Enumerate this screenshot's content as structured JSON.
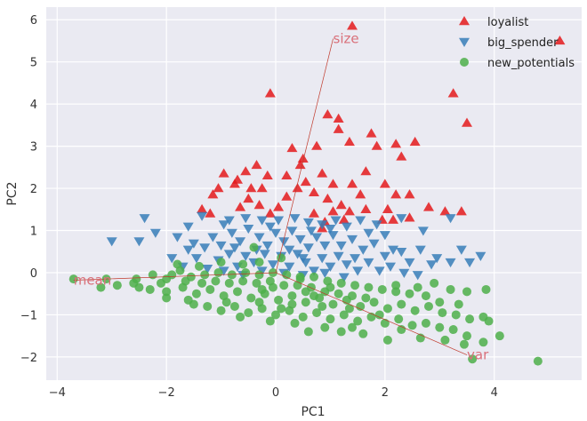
{
  "chart_data": {
    "type": "scatter",
    "title": "",
    "xlabel": "PC1",
    "ylabel": "PC2",
    "xlim": [
      -4.2,
      5.6
    ],
    "ylim": [
      -2.55,
      6.3
    ],
    "xticks": [
      -4,
      -2,
      0,
      2,
      4
    ],
    "yticks": [
      -2,
      -1,
      0,
      1,
      2,
      3,
      4,
      5,
      6
    ],
    "grid": true,
    "legend_position": "top-right",
    "series": [
      {
        "name": "loyalist",
        "marker": "triangle-up",
        "color": "#e41a1c",
        "points": [
          [
            1.4,
            5.85
          ],
          [
            5.2,
            5.5
          ],
          [
            -0.1,
            4.25
          ],
          [
            3.25,
            4.25
          ],
          [
            3.5,
            3.55
          ],
          [
            0.95,
            3.75
          ],
          [
            1.15,
            3.65
          ],
          [
            1.15,
            3.4
          ],
          [
            1.75,
            3.3
          ],
          [
            1.85,
            3.0
          ],
          [
            0.3,
            2.95
          ],
          [
            0.75,
            3.0
          ],
          [
            1.35,
            3.1
          ],
          [
            0.5,
            2.7
          ],
          [
            0.2,
            2.3
          ],
          [
            0.45,
            2.55
          ],
          [
            0.85,
            2.35
          ],
          [
            1.05,
            2.1
          ],
          [
            1.4,
            2.1
          ],
          [
            1.65,
            2.4
          ],
          [
            2.2,
            3.05
          ],
          [
            2.3,
            2.75
          ],
          [
            2.0,
            2.1
          ],
          [
            1.55,
            1.85
          ],
          [
            0.2,
            1.8
          ],
          [
            -0.35,
            2.55
          ],
          [
            -0.15,
            2.3
          ],
          [
            -0.55,
            2.4
          ],
          [
            -0.7,
            2.2
          ],
          [
            -0.75,
            2.1
          ],
          [
            -0.95,
            2.35
          ],
          [
            -0.45,
            2.0
          ],
          [
            -0.25,
            2.0
          ],
          [
            -1.05,
            2.0
          ],
          [
            -0.5,
            1.75
          ],
          [
            -1.15,
            1.85
          ],
          [
            -1.35,
            1.5
          ],
          [
            -1.2,
            1.4
          ],
          [
            -0.65,
            1.55
          ],
          [
            -0.3,
            1.6
          ],
          [
            0.4,
            2.0
          ],
          [
            0.55,
            2.15
          ],
          [
            0.7,
            1.9
          ],
          [
            0.95,
            1.75
          ],
          [
            1.2,
            1.6
          ],
          [
            1.35,
            1.45
          ],
          [
            1.65,
            1.5
          ],
          [
            2.05,
            1.5
          ],
          [
            2.2,
            1.85
          ],
          [
            2.45,
            1.85
          ],
          [
            1.95,
            1.25
          ],
          [
            2.15,
            1.25
          ],
          [
            2.45,
            1.3
          ],
          [
            2.8,
            1.55
          ],
          [
            0.7,
            1.4
          ],
          [
            0.9,
            1.2
          ],
          [
            1.25,
            1.25
          ],
          [
            -0.1,
            1.4
          ],
          [
            0.05,
            1.55
          ],
          [
            2.55,
            3.1
          ],
          [
            3.1,
            1.45
          ],
          [
            3.4,
            1.45
          ],
          [
            1.05,
            1.45
          ],
          [
            0.85,
            1.05
          ]
        ]
      },
      {
        "name": "big_spender",
        "marker": "triangle-down",
        "color": "#377eb8",
        "points": [
          [
            -2.4,
            1.3
          ],
          [
            -1.35,
            1.35
          ],
          [
            -0.85,
            1.25
          ],
          [
            -0.55,
            1.3
          ],
          [
            -0.25,
            1.25
          ],
          [
            0.05,
            1.25
          ],
          [
            0.35,
            1.3
          ],
          [
            0.6,
            1.2
          ],
          [
            0.85,
            1.15
          ],
          [
            1.1,
            1.25
          ],
          [
            1.3,
            1.1
          ],
          [
            1.55,
            1.25
          ],
          [
            1.85,
            1.15
          ],
          [
            2.3,
            1.3
          ],
          [
            2.7,
            1.0
          ],
          [
            3.2,
            1.3
          ],
          [
            -3.0,
            0.75
          ],
          [
            -2.5,
            0.75
          ],
          [
            -2.2,
            0.95
          ],
          [
            -1.8,
            0.85
          ],
          [
            -1.6,
            0.55
          ],
          [
            -1.3,
            0.6
          ],
          [
            -1.15,
            0.85
          ],
          [
            -1.0,
            0.65
          ],
          [
            -0.8,
            0.95
          ],
          [
            -0.65,
            0.75
          ],
          [
            -0.5,
            1.05
          ],
          [
            -0.3,
            0.85
          ],
          [
            -0.15,
            0.65
          ],
          [
            0.0,
            0.95
          ],
          [
            0.15,
            0.75
          ],
          [
            0.3,
            1.0
          ],
          [
            0.45,
            0.8
          ],
          [
            0.6,
            0.6
          ],
          [
            0.75,
            0.85
          ],
          [
            0.9,
            0.65
          ],
          [
            1.05,
            0.9
          ],
          [
            1.2,
            0.65
          ],
          [
            1.4,
            0.8
          ],
          [
            1.6,
            0.55
          ],
          [
            1.8,
            0.7
          ],
          [
            2.0,
            0.4
          ],
          [
            2.15,
            0.55
          ],
          [
            2.45,
            0.25
          ],
          [
            2.65,
            0.55
          ],
          [
            2.95,
            0.35
          ],
          [
            3.2,
            0.25
          ],
          [
            3.4,
            0.55
          ],
          [
            3.55,
            0.25
          ],
          [
            3.75,
            0.4
          ],
          [
            -1.9,
            0.35
          ],
          [
            -1.7,
            0.15
          ],
          [
            -1.45,
            0.35
          ],
          [
            -1.25,
            0.1
          ],
          [
            -1.05,
            0.3
          ],
          [
            -0.85,
            0.45
          ],
          [
            -0.7,
            0.15
          ],
          [
            -0.55,
            0.4
          ],
          [
            -0.4,
            0.25
          ],
          [
            -0.2,
            0.45
          ],
          [
            -0.05,
            0.2
          ],
          [
            0.1,
            0.4
          ],
          [
            0.25,
            0.15
          ],
          [
            0.4,
            0.45
          ],
          [
            0.55,
            0.25
          ],
          [
            0.7,
            0.05
          ],
          [
            0.85,
            0.35
          ],
          [
            1.0,
            0.15
          ],
          [
            1.15,
            0.4
          ],
          [
            1.3,
            0.2
          ],
          [
            1.5,
            0.05
          ],
          [
            1.7,
            0.25
          ],
          [
            1.9,
            0.05
          ],
          [
            2.1,
            0.15
          ],
          [
            2.35,
            0.0
          ],
          [
            2.6,
            -0.05
          ],
          [
            2.85,
            0.2
          ],
          [
            -0.95,
            0.05
          ],
          [
            -0.6,
            -0.05
          ],
          [
            -0.25,
            0.05
          ],
          [
            0.15,
            0.0
          ],
          [
            0.5,
            -0.05
          ],
          [
            0.9,
            0.0
          ],
          [
            1.25,
            -0.1
          ],
          [
            -1.5,
            0.7
          ],
          [
            -0.95,
            1.15
          ],
          [
            -0.35,
            0.55
          ],
          [
            0.25,
            0.55
          ],
          [
            0.65,
            1.0
          ],
          [
            1.0,
            1.05
          ],
          [
            -1.6,
            1.1
          ],
          [
            -0.75,
            0.6
          ],
          [
            -0.1,
            1.1
          ],
          [
            0.5,
            0.35
          ],
          [
            1.45,
            0.35
          ],
          [
            2.3,
            0.5
          ],
          [
            2.0,
            0.9
          ],
          [
            1.7,
            0.95
          ]
        ]
      },
      {
        "name": "new_potentials",
        "marker": "circle",
        "color": "#4daf4a",
        "points": [
          [
            -3.7,
            -0.15
          ],
          [
            -3.1,
            -0.15
          ],
          [
            -3.2,
            -0.35
          ],
          [
            -2.55,
            -0.15
          ],
          [
            -2.5,
            -0.35
          ],
          [
            -2.25,
            -0.05
          ],
          [
            -2.0,
            -0.15
          ],
          [
            -1.75,
            0.05
          ],
          [
            -1.55,
            -0.1
          ],
          [
            -1.3,
            -0.05
          ],
          [
            -1.05,
            0.0
          ],
          [
            -0.8,
            -0.05
          ],
          [
            -0.55,
            0.0
          ],
          [
            -0.3,
            -0.05
          ],
          [
            -0.05,
            0.0
          ],
          [
            0.2,
            -0.05
          ],
          [
            0.45,
            -0.1
          ],
          [
            0.7,
            -0.1
          ],
          [
            0.95,
            -0.2
          ],
          [
            1.2,
            -0.25
          ],
          [
            1.45,
            -0.3
          ],
          [
            1.7,
            -0.35
          ],
          [
            1.95,
            -0.4
          ],
          [
            2.2,
            -0.45
          ],
          [
            2.45,
            -0.5
          ],
          [
            2.75,
            -0.55
          ],
          [
            2.9,
            -0.25
          ],
          [
            3.2,
            -0.4
          ],
          [
            3.5,
            -0.45
          ],
          [
            3.85,
            -0.4
          ],
          [
            -2.9,
            -0.3
          ],
          [
            -2.3,
            -0.4
          ],
          [
            -2.0,
            -0.45
          ],
          [
            -1.7,
            -0.35
          ],
          [
            -1.45,
            -0.5
          ],
          [
            -1.2,
            -0.4
          ],
          [
            -0.95,
            -0.55
          ],
          [
            -0.7,
            -0.45
          ],
          [
            -0.45,
            -0.6
          ],
          [
            -0.2,
            -0.5
          ],
          [
            0.05,
            -0.65
          ],
          [
            0.3,
            -0.55
          ],
          [
            0.55,
            -0.7
          ],
          [
            0.8,
            -0.6
          ],
          [
            1.05,
            -0.75
          ],
          [
            1.3,
            -0.65
          ],
          [
            1.55,
            -0.8
          ],
          [
            1.8,
            -0.7
          ],
          [
            2.05,
            -0.85
          ],
          [
            2.3,
            -0.75
          ],
          [
            2.55,
            -0.9
          ],
          [
            2.8,
            -0.8
          ],
          [
            3.05,
            -0.95
          ],
          [
            3.3,
            -1.0
          ],
          [
            3.55,
            -1.1
          ],
          [
            -1.25,
            -0.8
          ],
          [
            -1.0,
            -0.9
          ],
          [
            -0.75,
            -0.8
          ],
          [
            -0.5,
            -0.95
          ],
          [
            -0.25,
            -0.85
          ],
          [
            0.0,
            -1.0
          ],
          [
            0.25,
            -0.9
          ],
          [
            0.5,
            -1.05
          ],
          [
            0.75,
            -0.95
          ],
          [
            1.0,
            -1.1
          ],
          [
            1.25,
            -1.0
          ],
          [
            1.5,
            -1.15
          ],
          [
            1.75,
            -1.05
          ],
          [
            2.0,
            -1.2
          ],
          [
            2.25,
            -1.1
          ],
          [
            2.5,
            -1.25
          ],
          [
            2.75,
            -1.2
          ],
          [
            3.0,
            -1.3
          ],
          [
            3.25,
            -1.35
          ],
          [
            3.5,
            -1.5
          ],
          [
            3.8,
            -1.65
          ],
          [
            4.1,
            -1.5
          ],
          [
            4.8,
            -2.1
          ],
          [
            3.9,
            -1.15
          ],
          [
            3.8,
            -1.05
          ],
          [
            -2.0,
            -0.6
          ],
          [
            -1.6,
            -0.65
          ],
          [
            -0.1,
            -1.15
          ],
          [
            0.35,
            -1.2
          ],
          [
            0.9,
            -1.3
          ],
          [
            1.2,
            -1.4
          ],
          [
            1.6,
            -1.45
          ],
          [
            2.3,
            -1.35
          ],
          [
            2.65,
            -1.55
          ],
          [
            3.1,
            -1.6
          ],
          [
            3.45,
            -1.7
          ],
          [
            3.6,
            -2.05
          ],
          [
            2.05,
            -1.6
          ],
          [
            1.4,
            -1.3
          ],
          [
            0.6,
            -1.4
          ],
          [
            -1.0,
            0.25
          ],
          [
            -0.6,
            0.2
          ],
          [
            -0.3,
            0.25
          ],
          [
            0.1,
            0.35
          ],
          [
            -0.4,
            0.6
          ],
          [
            -1.8,
            0.2
          ],
          [
            -1.4,
            0.15
          ],
          [
            -2.6,
            -0.25
          ],
          [
            -2.1,
            -0.25
          ],
          [
            -1.9,
            -0.05
          ],
          [
            -1.65,
            -0.2
          ],
          [
            -1.35,
            -0.25
          ],
          [
            -1.1,
            -0.2
          ],
          [
            -0.85,
            -0.25
          ],
          [
            -0.6,
            -0.2
          ],
          [
            -0.35,
            -0.25
          ],
          [
            -0.1,
            -0.2
          ],
          [
            0.15,
            -0.3
          ],
          [
            0.4,
            -0.3
          ],
          [
            0.65,
            -0.35
          ],
          [
            0.9,
            -0.45
          ],
          [
            1.15,
            -0.5
          ],
          [
            1.4,
            -0.55
          ],
          [
            1.65,
            -0.6
          ],
          [
            -1.5,
            -0.75
          ],
          [
            -0.9,
            -0.7
          ],
          [
            -0.3,
            -0.7
          ],
          [
            0.3,
            -0.75
          ],
          [
            0.85,
            -0.8
          ],
          [
            1.35,
            -0.85
          ],
          [
            2.2,
            -0.3
          ],
          [
            2.6,
            -0.35
          ],
          [
            3.0,
            -0.7
          ],
          [
            3.35,
            -0.75
          ],
          [
            -0.05,
            -0.35
          ],
          [
            0.7,
            -0.55
          ],
          [
            1.9,
            -1.0
          ],
          [
            0.1,
            -0.85
          ],
          [
            -0.65,
            -1.05
          ],
          [
            0.45,
            -0.15
          ],
          [
            1.0,
            -0.35
          ],
          [
            -0.25,
            -0.4
          ],
          [
            0.55,
            -0.45
          ]
        ]
      }
    ],
    "loading_arrows": [
      {
        "name": "size",
        "x": 1.05,
        "y": 5.55
      },
      {
        "name": "mean",
        "x": -3.7,
        "y": -0.18
      },
      {
        "name": "var",
        "x": 3.5,
        "y": -1.95
      }
    ],
    "arrow_color": "#c0392b"
  }
}
